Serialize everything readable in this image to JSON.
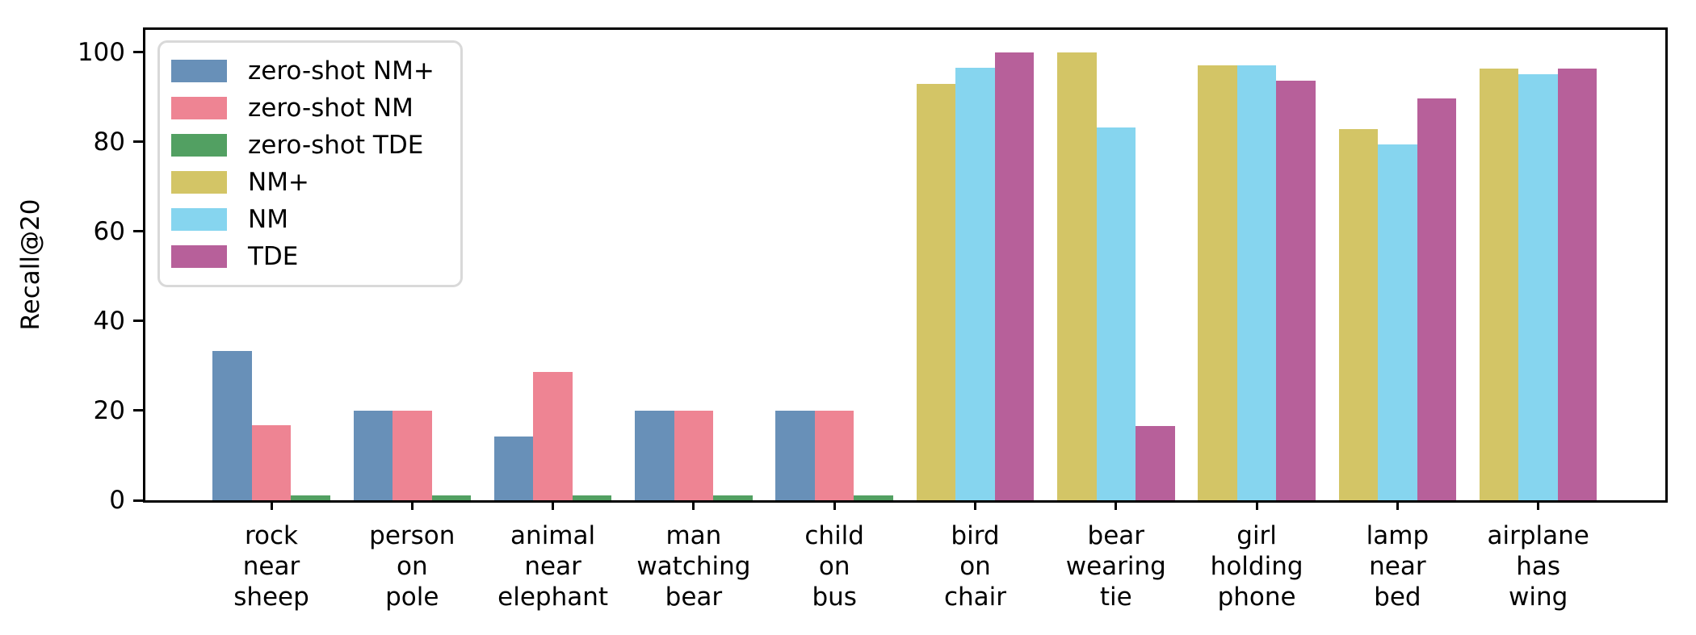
{
  "chart_data": {
    "type": "bar",
    "title": "",
    "xlabel": "",
    "ylabel": "Recall@20",
    "ylim": [
      0,
      105
    ],
    "yticks": [
      0,
      20,
      40,
      60,
      80,
      100
    ],
    "grid": false,
    "legend_position": "upper left",
    "categories": [
      "rock near sheep",
      "person on pole",
      "animal near elephant",
      "man watching bear",
      "child on bus",
      "bird on chair",
      "bear wearing tie",
      "girl holding phone",
      "lamp near bed",
      "airplane has wing"
    ],
    "series": [
      {
        "name": "zero-shot NM+",
        "color": "#6890b8",
        "values": [
          33.3,
          20,
          14.3,
          20,
          20,
          null,
          null,
          null,
          null,
          null
        ]
      },
      {
        "name": "zero-shot NM",
        "color": "#ee8493",
        "values": [
          16.7,
          20,
          28.6,
          20,
          20,
          null,
          null,
          null,
          null,
          null
        ]
      },
      {
        "name": "zero-shot TDE",
        "color": "#52a062",
        "values": [
          1.1,
          1.1,
          1.1,
          1.1,
          1.1,
          null,
          null,
          null,
          null,
          null
        ]
      },
      {
        "name": "NM+",
        "color": "#d3c566",
        "values": [
          null,
          null,
          null,
          null,
          null,
          92.9,
          100,
          97,
          82.8,
          96.4
        ]
      },
      {
        "name": "NM",
        "color": "#86d5ef",
        "values": [
          null,
          null,
          null,
          null,
          null,
          96.6,
          83.3,
          97,
          79.4,
          95.1
        ]
      },
      {
        "name": "TDE",
        "color": "#b7609a",
        "values": [
          null,
          null,
          null,
          null,
          null,
          100,
          16.5,
          93.7,
          89.7,
          96.3
        ]
      }
    ],
    "axis_color": "#000000",
    "legend_border_color": "#d9d9d9"
  }
}
